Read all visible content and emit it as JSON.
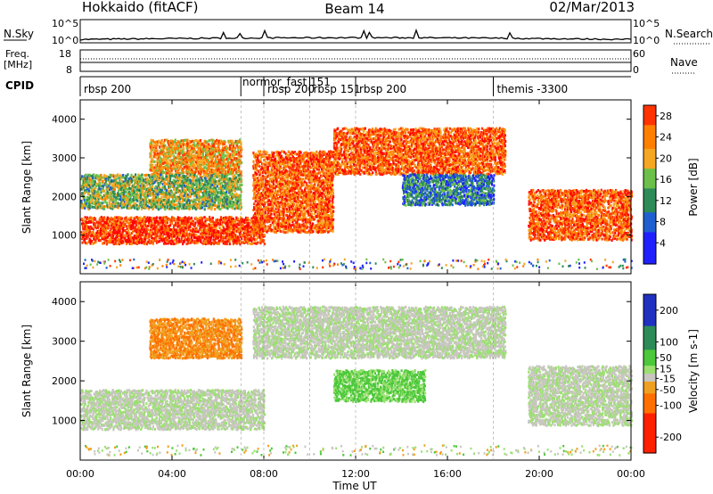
{
  "header": {
    "station": "Hokkaido (fitACF)",
    "beam": "Beam 14",
    "date": "02/Mar/2013"
  },
  "noise_panel": {
    "left_label": "N.Sky",
    "right_label": "N.Search",
    "left_ticks": [
      "10^5",
      "10^0"
    ],
    "right_ticks": [
      "10^5",
      "10^0"
    ]
  },
  "freq_panel": {
    "left_label_line1": "Freq.",
    "left_label_line2": "[MHz]",
    "right_label": "Nave",
    "left_ticks": [
      "18",
      "8"
    ],
    "right_ticks": [
      "60",
      "0"
    ]
  },
  "cpid_panel": {
    "label": "CPID",
    "modes": [
      {
        "name": "rbsp 200",
        "start_hour": 0.0
      },
      {
        "name": "normor_fast",
        "start_hour": 7.0
      },
      {
        "name": "rbsp 200",
        "start_hour": 8.0
      },
      {
        "name": "rbsp 151",
        "start_hour": 10.0
      },
      {
        "name": "rbsp 200",
        "start_hour": 12.0
      },
      {
        "name": "themis -3300",
        "start_hour": 18.0
      }
    ],
    "overlap_text": "normor_fast 151"
  },
  "chart_data": [
    {
      "type": "heatmap",
      "parameter": "Power",
      "ylabel": "Slant Range [km]",
      "ylim": [
        0,
        4500
      ],
      "y_ticks": [
        1000,
        2000,
        3000,
        4000
      ],
      "xlim": [
        0,
        24
      ],
      "colorbar": {
        "label": "Power [dB]",
        "ticks": [
          4,
          8,
          12,
          16,
          20,
          24,
          28
        ],
        "range": [
          0,
          30
        ]
      },
      "bands": [
        {
          "x_start": 0,
          "x_end": 8,
          "range_low": 800,
          "range_high": 1500,
          "value": 28
        },
        {
          "x_start": 7.5,
          "x_end": 11,
          "range_low": 1100,
          "range_high": 3200,
          "value": 26
        },
        {
          "x_start": 11,
          "x_end": 18.5,
          "range_low": 2600,
          "range_high": 3800,
          "value": 26
        },
        {
          "x_start": 19.5,
          "x_end": 24,
          "range_low": 900,
          "range_high": 2200,
          "value": 26
        },
        {
          "x_start": 3,
          "x_end": 7,
          "range_low": 2600,
          "range_high": 3500,
          "value": 22
        },
        {
          "x_start": 0,
          "x_end": 7,
          "range_low": 1700,
          "range_high": 2600,
          "value": 16
        },
        {
          "x_start": 14,
          "x_end": 18,
          "range_low": 1800,
          "range_high": 2600,
          "value": 10
        }
      ]
    },
    {
      "type": "heatmap",
      "parameter": "Velocity",
      "ylabel": "Slant Range [km]",
      "xlabel": "Time UT",
      "ylim": [
        0,
        4500
      ],
      "y_ticks": [
        1000,
        2000,
        3000,
        4000
      ],
      "xlim": [
        0,
        24
      ],
      "x_ticks": [
        "00:00",
        "04:00",
        "08:00",
        "12:00",
        "16:00",
        "20:00",
        "00:00"
      ],
      "colorbar": {
        "label": "Velocity [m s-1]",
        "ticks": [
          200,
          100,
          50,
          15,
          -15,
          -50,
          -100,
          -200
        ],
        "range": [
          -250,
          250
        ]
      },
      "bands": [
        {
          "x_start": 0,
          "x_end": 8,
          "range_low": 800,
          "range_high": 1800,
          "value": 0
        },
        {
          "x_start": 7.5,
          "x_end": 18.5,
          "range_low": 2600,
          "range_high": 3900,
          "value": 0
        },
        {
          "x_start": 19.5,
          "x_end": 24,
          "range_low": 900,
          "range_high": 2400,
          "value": 0
        },
        {
          "x_start": 11,
          "x_end": 15,
          "range_low": 1500,
          "range_high": 2300,
          "value": 30
        },
        {
          "x_start": 3,
          "x_end": 7,
          "range_low": 2600,
          "range_high": 3600,
          "value": -60
        }
      ]
    }
  ]
}
